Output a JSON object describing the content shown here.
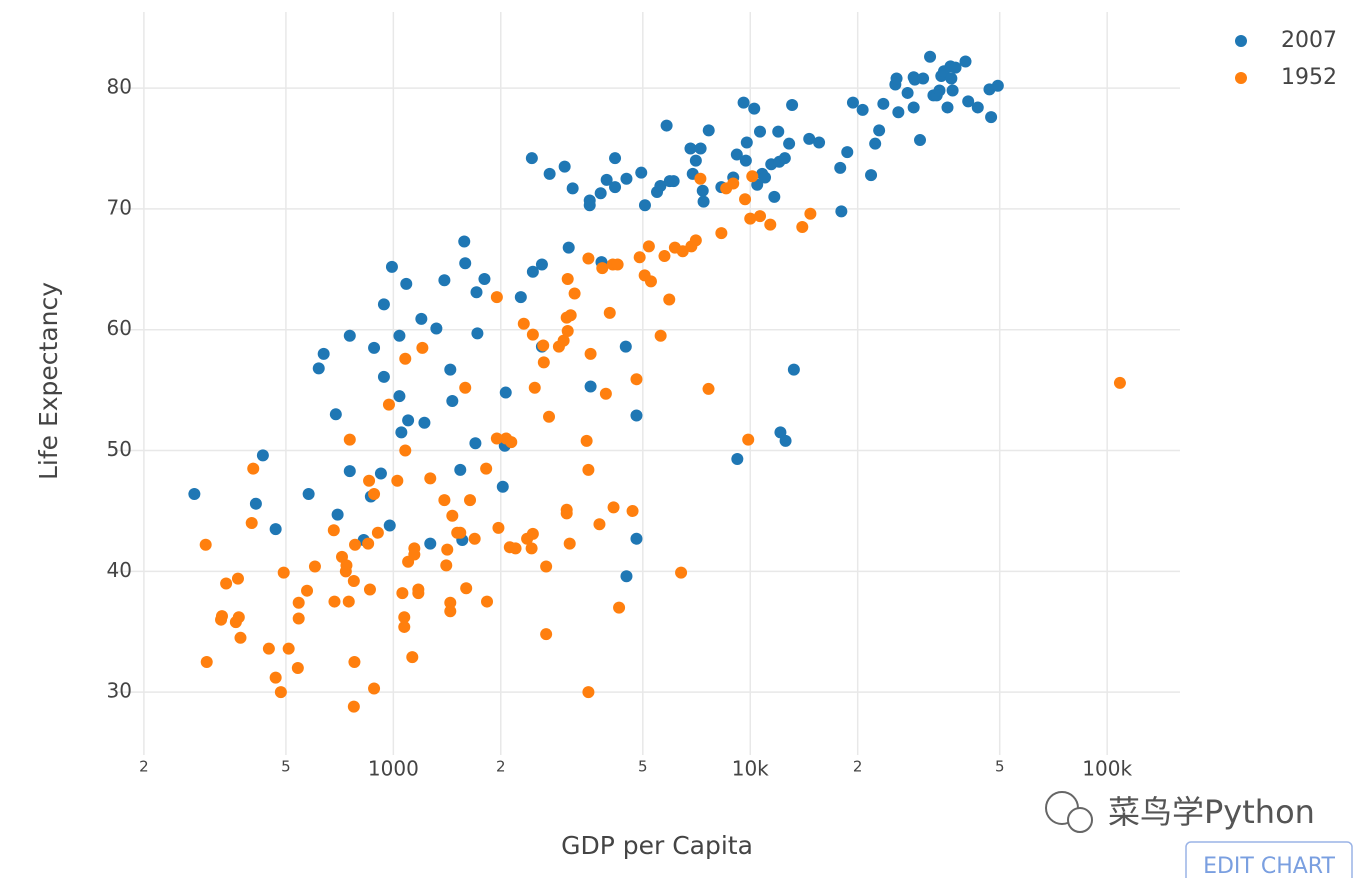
{
  "chart_data": {
    "type": "scatter",
    "x_label": "GDP per Capita",
    "y_label": "Life Expectancy",
    "x_scale": "log",
    "grid": true,
    "legend_position": "top-right",
    "xlim": [
      166,
      160000
    ],
    "ylim": [
      24.8,
      86.3
    ],
    "xticks": [
      {
        "value": 200,
        "label": "2"
      },
      {
        "value": 500,
        "label": "5"
      },
      1000,
      {
        "value": 2000,
        "label": "2"
      },
      {
        "value": 5000,
        "label": "5"
      },
      {
        "value": 10000,
        "label": "10k"
      },
      {
        "value": 20000,
        "label": "2"
      },
      {
        "value": 50000,
        "label": "5"
      },
      {
        "value": 100000,
        "label": "100k"
      }
    ],
    "yticks": [
      30,
      40,
      50,
      60,
      70,
      80
    ],
    "series": [
      {
        "name": "2007",
        "color": "#1f77b4",
        "x": [
          277,
          412,
          431,
          468,
          579,
          618,
          638,
          690,
          698,
          755,
          755,
          826,
          865,
          883,
          923,
          941,
          941,
          977,
          991,
          1040,
          1040,
          1053,
          1087,
          1100,
          1198,
          1222,
          1269,
          1320,
          1390,
          1444,
          1463,
          1540,
          1560,
          1580,
          1590,
          1698,
          1710,
          1720,
          1800,
          2026,
          2052,
          2065,
          2276,
          2444,
          2460,
          2608,
          2608,
          2741,
          3020,
          3100,
          3180,
          3550,
          3550,
          3570,
          3810,
          3830,
          3960,
          4180,
          4180,
          4480,
          4500,
          4500,
          4800,
          4800,
          4950,
          5070,
          5480,
          5600,
          5830,
          5950,
          6100,
          6800,
          6900,
          7040,
          7260,
          7360,
          7400,
          7650,
          8300,
          8960,
          9170,
          9200,
          9580,
          9720,
          9780,
          10260,
          10460,
          10650,
          10800,
          11000,
          11450,
          11680,
          11980,
          12060,
          12150,
          12500,
          12560,
          12850,
          13100,
          13250,
          14630,
          15590,
          17870,
          18000,
          18700,
          19400,
          20650,
          21800,
          22390,
          22970,
          23600,
          25500,
          25700,
          26000,
          27600,
          28700,
          28700,
          28900,
          29900,
          30500,
          31900,
          32600,
          33300,
          33900,
          34300,
          34900,
          35700,
          36400,
          36600,
          36900,
          37600,
          40100,
          40800,
          43400,
          46800,
          47300,
          49400
        ],
        "values": [
          46.4,
          45.6,
          49.6,
          43.5,
          46.4,
          56.8,
          58,
          53,
          44.7,
          59.5,
          48.3,
          42.6,
          46.2,
          58.5,
          48.1,
          56.1,
          62.1,
          43.8,
          65.2,
          59.5,
          54.5,
          51.5,
          63.8,
          52.5,
          60.9,
          52.3,
          42.3,
          60.1,
          64.1,
          56.7,
          54.1,
          48.4,
          42.6,
          67.3,
          65.5,
          50.6,
          63.1,
          59.7,
          64.2,
          47,
          50.4,
          54.8,
          62.7,
          74.2,
          64.8,
          65.4,
          58.6,
          72.9,
          73.5,
          66.8,
          71.7,
          70.7,
          70.3,
          55.3,
          71.3,
          65.6,
          72.4,
          74.2,
          71.8,
          58.6,
          72.5,
          39.6,
          52.9,
          42.7,
          73,
          70.3,
          71.4,
          71.9,
          76.9,
          72.3,
          72.3,
          75,
          72.9,
          74,
          75,
          71.5,
          70.6,
          76.5,
          71.8,
          72.6,
          74.5,
          49.3,
          78.8,
          74,
          75.5,
          78.3,
          72,
          76.4,
          72.9,
          72.6,
          73.7,
          71,
          76.4,
          73.9,
          51.5,
          74.2,
          50.8,
          75.4,
          78.6,
          56.7,
          75.8,
          75.5,
          73.4,
          69.8,
          74.7,
          78.8,
          78.2,
          72.8,
          75.4,
          76.5,
          78.7,
          80.3,
          80.8,
          78,
          79.6,
          78.4,
          80.9,
          80.7,
          75.7,
          80.8,
          82.6,
          79.4,
          79.4,
          79.8,
          81,
          81.4,
          78.4,
          81.8,
          80.8,
          79.8,
          81.7,
          82.2,
          78.9,
          78.4,
          79.9,
          77.6,
          80.2
        ]
      },
      {
        "name": "1952",
        "color": "#ff7f0e",
        "x": [
          298,
          300,
          329,
          331,
          340,
          362,
          367,
          369,
          373,
          401,
          405,
          448,
          468,
          484,
          493,
          509,
          540,
          543,
          543,
          573,
          603,
          681,
          684,
          718,
          736,
          739,
          755,
          750,
          775,
          778,
          775,
          781,
          850,
          855,
          860,
          883,
          883,
          905,
          972,
          1026,
          1060,
          1073,
          1073,
          1080,
          1080,
          1100,
          1130,
          1145,
          1145,
          1175,
          1175,
          1206,
          1269,
          1390,
          1407,
          1416,
          1444,
          1444,
          1463,
          1510,
          1540,
          1590,
          1600,
          1640,
          1690,
          1820,
          1830,
          1950,
          1950,
          1970,
          2070,
          2120,
          2140,
          2200,
          2320,
          2370,
          2440,
          2460,
          2460,
          2490,
          2630,
          2640,
          2680,
          2680,
          2730,
          2910,
          3000,
          3060,
          3060,
          3060,
          3080,
          3080,
          3120,
          3140,
          3220,
          3480,
          3520,
          3520,
          3570,
          3520,
          3780,
          3850,
          3940,
          4040,
          4120,
          4140,
          4250,
          4290,
          4680,
          4800,
          4900,
          5060,
          5200,
          5270,
          5610,
          5750,
          5930,
          6150,
          6400,
          6470,
          6840,
          7040,
          7250,
          7640,
          8300,
          8560,
          8960,
          9670,
          9870,
          10000,
          10130,
          10650,
          11380,
          13990,
          14740,
          108600
        ],
        "values": [
          42.2,
          32.5,
          36,
          36.3,
          39,
          35.8,
          39.4,
          36.2,
          34.5,
          44,
          48.5,
          33.6,
          31.2,
          30,
          39.9,
          33.6,
          32,
          37.4,
          36.1,
          38.4,
          40.4,
          43.4,
          37.5,
          41.2,
          40,
          40.5,
          50.9,
          37.5,
          39.2,
          32.5,
          28.8,
          42.2,
          42.3,
          47.5,
          38.5,
          46.4,
          30.3,
          43.2,
          53.8,
          47.5,
          38.2,
          36.2,
          35.4,
          57.6,
          50,
          40.8,
          32.9,
          41.9,
          41.4,
          38.2,
          38.5,
          58.5,
          47.7,
          45.9,
          40.5,
          41.8,
          37.4,
          36.7,
          44.6,
          43.2,
          43.2,
          55.2,
          38.6,
          45.9,
          42.7,
          48.5,
          37.5,
          62.7,
          51,
          43.6,
          51,
          42,
          50.7,
          41.9,
          60.5,
          42.7,
          41.9,
          59.6,
          43.1,
          55.2,
          58.7,
          57.3,
          40.4,
          34.8,
          52.8,
          58.6,
          59.1,
          61,
          45.1,
          44.8,
          64.2,
          59.9,
          42.3,
          61.2,
          63,
          50.8,
          65.9,
          48.4,
          58,
          30,
          43.9,
          65.1,
          54.7,
          61.4,
          65.4,
          45.3,
          65.4,
          37,
          45,
          55.9,
          66,
          64.5,
          66.9,
          64,
          59.5,
          66.1,
          62.5,
          66.8,
          39.9,
          66.5,
          66.9,
          67.4,
          72.5,
          55.1,
          68,
          71.7,
          72.1,
          70.8,
          50.9,
          69.2,
          72.7,
          69.4,
          68.7,
          68.5,
          69.6,
          55.6
        ]
      }
    ]
  },
  "watermark": "菜鸟学Python",
  "edit_button": "EDIT CHART"
}
